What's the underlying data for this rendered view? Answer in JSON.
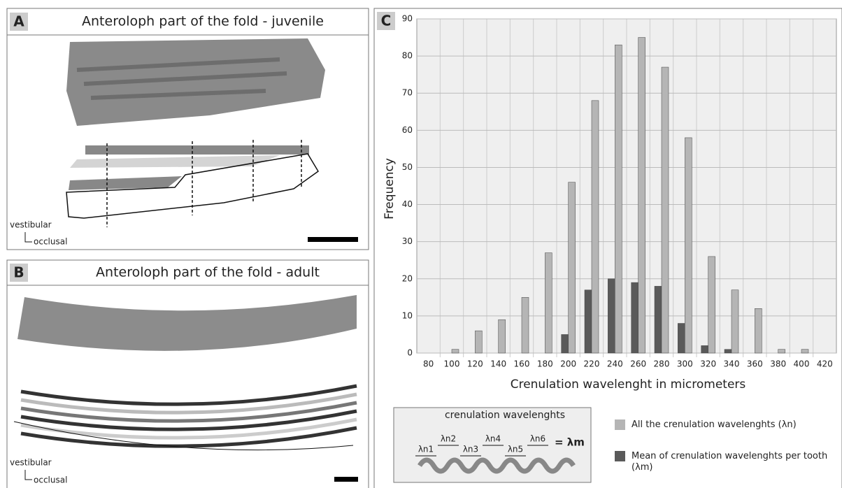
{
  "panels": [
    {
      "letter": "A",
      "title": "Anteroloph part of the fold - juvenile",
      "orientation": [
        "vestibular",
        "occlusal"
      ]
    },
    {
      "letter": "B",
      "title": "Anteroloph part of the fold - adult",
      "orientation": [
        "vestibular",
        "occlusal"
      ]
    }
  ],
  "chart_data": {
    "type": "bar",
    "letter": "C",
    "x_label": "Crenulation wavelenght in micrometers",
    "y_label": "Frequency",
    "categories": [
      "80",
      "100",
      "120",
      "140",
      "160",
      "180",
      "200",
      "220",
      "240",
      "260",
      "280",
      "300",
      "320",
      "340",
      "360",
      "380",
      "400",
      "420"
    ],
    "series": [
      {
        "name": "Mean of crenulation wavelenghts per tooth (λm)",
        "color": "#5a5a5a",
        "values": [
          0,
          0,
          0,
          0,
          0,
          0,
          5,
          17,
          20,
          19,
          18,
          8,
          2,
          1,
          0,
          0,
          0,
          0
        ]
      },
      {
        "name": "All the crenulation wavelenghts (λn)",
        "color": "#b5b5b5",
        "values": [
          0,
          1,
          6,
          9,
          15,
          27,
          46,
          68,
          83,
          85,
          77,
          58,
          26,
          17,
          12,
          1,
          1,
          0
        ]
      }
    ],
    "ylim": [
      0,
      90
    ],
    "yticks": [
      0,
      10,
      20,
      30,
      40,
      50,
      60,
      70,
      80,
      90
    ],
    "grid": true,
    "inset": {
      "title": "crenulation wavelenghts",
      "labels": [
        "λn1",
        "λn2",
        "λn3",
        "λn4",
        "λn5",
        "λn6"
      ],
      "result": "= λm"
    }
  }
}
